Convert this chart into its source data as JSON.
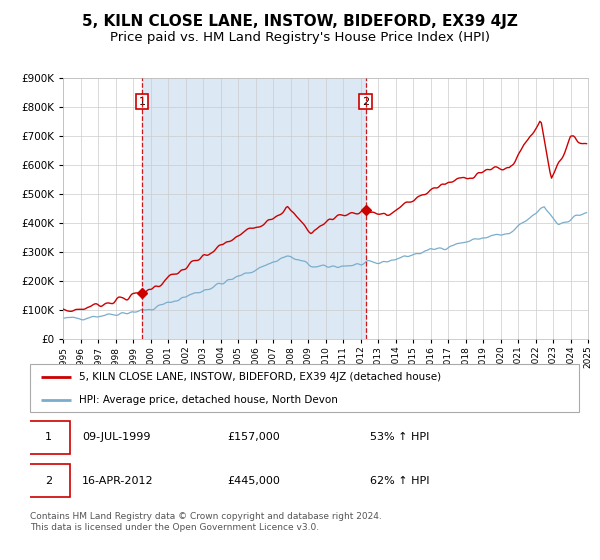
{
  "title": "5, KILN CLOSE LANE, INSTOW, BIDEFORD, EX39 4JZ",
  "subtitle": "Price paid vs. HM Land Registry's House Price Index (HPI)",
  "red_label": "5, KILN CLOSE LANE, INSTOW, BIDEFORD, EX39 4JZ (detached house)",
  "blue_label": "HPI: Average price, detached house, North Devon",
  "annotation1_label": "1",
  "annotation1_date": "09-JUL-1999",
  "annotation1_price": "£157,000",
  "annotation1_hpi": "53% ↑ HPI",
  "annotation2_label": "2",
  "annotation2_date": "16-APR-2012",
  "annotation2_price": "£445,000",
  "annotation2_hpi": "62% ↑ HPI",
  "sale1_year": 1999.52,
  "sale1_value": 157000,
  "sale2_year": 2012.29,
  "sale2_value": 445000,
  "footer": "Contains HM Land Registry data © Crown copyright and database right 2024.\nThis data is licensed under the Open Government Licence v3.0.",
  "red_color": "#cc0000",
  "blue_color": "#7aadcc",
  "grid_color": "#cccccc",
  "shade_color": "#dce9f5",
  "ylim_max": 900000,
  "title_fontsize": 11,
  "subtitle_fontsize": 9.5
}
